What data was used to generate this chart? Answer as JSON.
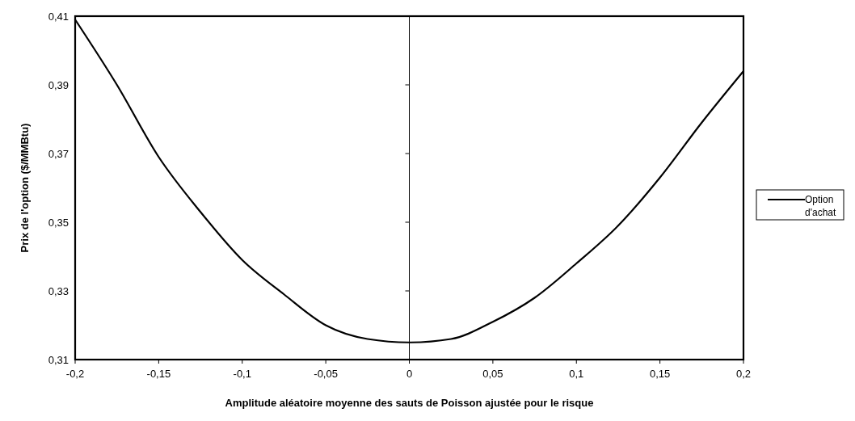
{
  "chart_data": {
    "type": "line",
    "xlabel": "Amplitude aléatoire moyenne des sauts de Poisson ajustée pour le risque",
    "ylabel": "Prix de l'option ($/MMBtu)",
    "x": [
      -0.2,
      -0.175,
      -0.15,
      -0.125,
      -0.1,
      -0.075,
      -0.05,
      -0.025,
      0,
      0.025,
      0.05,
      0.075,
      0.1,
      0.125,
      0.15,
      0.175,
      0.2
    ],
    "series": [
      {
        "name": "Option d'achat",
        "color": "#000000",
        "values": [
          0.409,
          0.39,
          0.369,
          0.353,
          0.339,
          0.329,
          0.32,
          0.316,
          0.315,
          0.316,
          0.321,
          0.328,
          0.338,
          0.349,
          0.363,
          0.379,
          0.394
        ]
      }
    ],
    "xlim": [
      -0.2,
      0.2
    ],
    "xticks": [
      {
        "value": -0.2,
        "label": "-0,2"
      },
      {
        "value": -0.15,
        "label": "-0,15"
      },
      {
        "value": -0.1,
        "label": "-0,1"
      },
      {
        "value": -0.05,
        "label": "-0,05"
      },
      0,
      {
        "value": 0.05,
        "label": "0,05"
      },
      {
        "value": 0.1,
        "label": "0,1"
      },
      {
        "value": 0.15,
        "label": "0,15"
      },
      {
        "value": 0.2,
        "label": "0,2"
      }
    ],
    "ylim": [
      0.31,
      0.41
    ],
    "yticks": [
      {
        "value": 0.31,
        "label": "0,31"
      },
      {
        "value": 0.33,
        "label": "0,33"
      },
      {
        "value": 0.35,
        "label": "0,35"
      },
      {
        "value": 0.37,
        "label": "0,37"
      },
      {
        "value": 0.39,
        "label": "0,39"
      },
      {
        "value": 0.41,
        "label": "0,41"
      }
    ],
    "ref_lines": [
      {
        "axis": "x",
        "value": 0,
        "color": "#000000"
      }
    ],
    "legend": "right"
  }
}
